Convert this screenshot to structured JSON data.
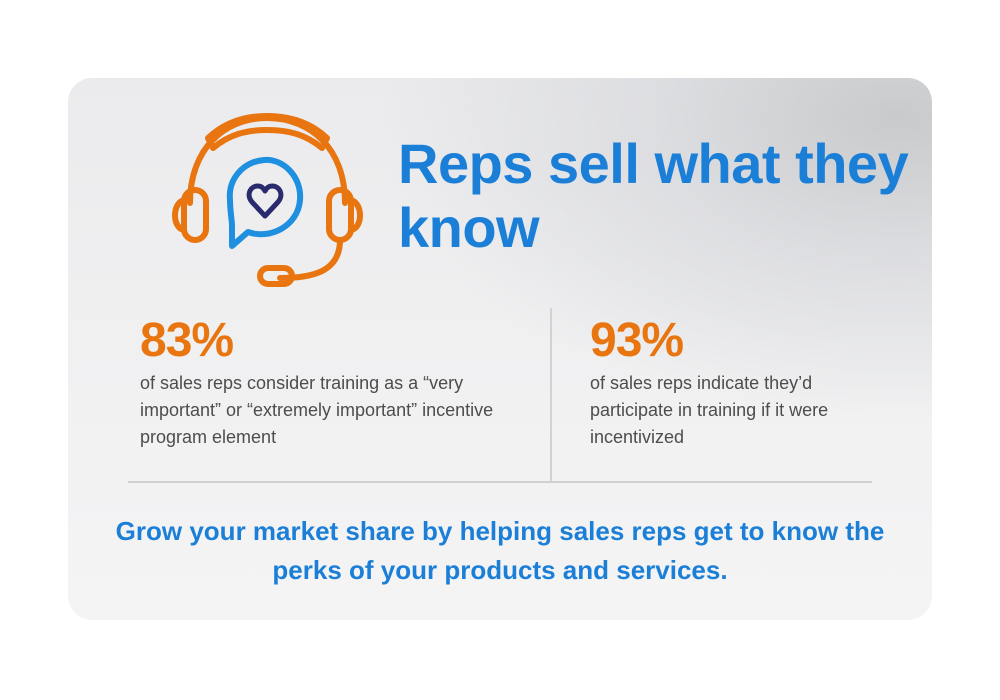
{
  "colors": {
    "accent_blue": "#1b7fd8",
    "accent_orange": "#e8750f",
    "heart_navy": "#2a2a6e"
  },
  "icon": "headset-with-heart-speech-bubble-icon",
  "title": "Reps sell what they know",
  "stats": [
    {
      "value": "83%",
      "description": "of sales reps consider training as a “very important” or “extremely important” incentive program element"
    },
    {
      "value": "93%",
      "description": "of sales reps indicate they’d participate in training if it were incentivized"
    }
  ],
  "footer": "Grow your market share by helping sales reps get to know the perks of your products and services."
}
